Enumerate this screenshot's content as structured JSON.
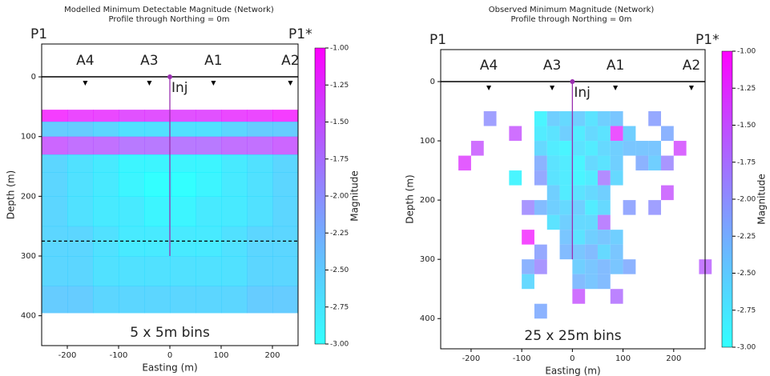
{
  "chart_data": [
    {
      "type": "heatmap",
      "title": "Modelled Minimum Detectable Magnitude (Network)",
      "subtitle": "Profile through Northing = 0m",
      "xlabel": "Easting (m)",
      "ylabel": "Depth (m)",
      "colorbar_label": "Magnitude",
      "profile_start": "P1",
      "profile_end": "P1*",
      "bins_label": "5 x 5m bins",
      "xlim": [
        -250,
        250
      ],
      "ylim": [
        -55,
        450
      ],
      "invert_y": true,
      "xticks": [
        -200,
        -100,
        0,
        100,
        200
      ],
      "yticks": [
        0,
        100,
        200,
        300,
        400
      ],
      "zlim": [
        -3,
        -1
      ],
      "zticks": [
        {
          "value": -1,
          "label": "-1.00"
        },
        {
          "value": -1.25,
          "label": "-1.25"
        },
        {
          "value": -1.5,
          "label": "-1.50"
        },
        {
          "value": -1.75,
          "label": "-1.75"
        },
        {
          "value": -2,
          "label": "-2.00"
        },
        {
          "value": -2.25,
          "label": "-2.25"
        },
        {
          "value": -2.5,
          "label": "-2.50"
        },
        {
          "value": -2.75,
          "label": "-2.75"
        },
        {
          "value": -3,
          "label": "-3.00"
        }
      ],
      "colormap": [
        "#00ffff",
        "#ff00ff"
      ],
      "stations": [
        {
          "label": "A4",
          "x": -165
        },
        {
          "label": "A3",
          "x": -40
        },
        {
          "label": "A1",
          "x": 85
        },
        {
          "label": "A2",
          "x": 235
        }
      ],
      "injection": {
        "label": "Inj",
        "x": 0,
        "depth": 300
      },
      "hline": 275,
      "xbins": [
        -250,
        -200,
        -150,
        -100,
        -50,
        0,
        50,
        100,
        150,
        200,
        250
      ],
      "ybins": [
        55,
        75,
        100,
        130,
        160,
        200,
        250,
        300,
        350,
        395
      ],
      "values": [
        [
          -1.1,
          -1.2,
          -1.2,
          -1.3,
          -1.3,
          -1.3,
          -1.3,
          -1.2,
          -1.2,
          -1.1
        ],
        [
          -2.5,
          -2.5,
          -2.6,
          -2.7,
          -2.7,
          -2.7,
          -2.7,
          -2.6,
          -2.5,
          -2.5
        ],
        [
          -1.5,
          -1.6,
          -1.6,
          -1.7,
          -1.7,
          -1.7,
          -1.7,
          -1.6,
          -1.6,
          -1.5
        ],
        [
          -2.6,
          -2.7,
          -2.8,
          -2.9,
          -2.9,
          -2.9,
          -2.9,
          -2.8,
          -2.7,
          -2.6
        ],
        [
          -2.6,
          -2.7,
          -2.8,
          -2.9,
          -3.0,
          -3.0,
          -2.9,
          -2.8,
          -2.7,
          -2.6
        ],
        [
          -2.6,
          -2.7,
          -2.8,
          -2.8,
          -2.9,
          -2.9,
          -2.8,
          -2.8,
          -2.7,
          -2.6
        ],
        [
          -2.6,
          -2.6,
          -2.7,
          -2.8,
          -2.8,
          -2.8,
          -2.8,
          -2.7,
          -2.6,
          -2.6
        ],
        [
          -2.6,
          -2.6,
          -2.7,
          -2.7,
          -2.7,
          -2.7,
          -2.7,
          -2.7,
          -2.6,
          -2.6
        ],
        [
          -2.5,
          -2.5,
          -2.6,
          -2.6,
          -2.6,
          -2.6,
          -2.6,
          -2.6,
          -2.5,
          -2.5
        ]
      ]
    },
    {
      "type": "cells",
      "title": "Observed Minimum Magnitude (Network)",
      "subtitle": "Profile through Northing = 0m",
      "xlabel": "Easting (m)",
      "ylabel": "Depth (m)",
      "colorbar_label": "Magnitude",
      "profile_start": "P1",
      "profile_end": "P1*",
      "bins_label": "25 x 25m bins",
      "xlim": [
        -260,
        262
      ],
      "ylim": [
        -54,
        451
      ],
      "invert_y": true,
      "xticks": [
        -200,
        -100,
        0,
        100,
        200
      ],
      "yticks": [
        0,
        100,
        200,
        300,
        400
      ],
      "zlim": [
        -3,
        -1
      ],
      "zticks": [
        {
          "value": -1,
          "label": "-1.00"
        },
        {
          "value": -1.25,
          "label": "-1.25"
        },
        {
          "value": -1.5,
          "label": "-1.50"
        },
        {
          "value": -1.75,
          "label": "-1.75"
        },
        {
          "value": -2,
          "label": "-2.00"
        },
        {
          "value": -2.25,
          "label": "-2.25"
        },
        {
          "value": -2.5,
          "label": "-2.50"
        },
        {
          "value": -2.75,
          "label": "-2.75"
        },
        {
          "value": -3,
          "label": "-3.00"
        }
      ],
      "colormap": [
        "#00ffff",
        "#ff00ff"
      ],
      "stations": [
        {
          "label": "A4",
          "x": -165
        },
        {
          "label": "A3",
          "x": -40
        },
        {
          "label": "A1",
          "x": 85
        },
        {
          "label": "A2",
          "x": 235
        }
      ],
      "injection": {
        "label": "Inj",
        "x": 0,
        "depth": 300
      },
      "x": [
        -175,
        -75,
        -50,
        -25,
        0,
        25,
        50,
        75,
        150,
        -125,
        -75,
        -50,
        -25,
        0,
        25,
        50,
        75,
        100,
        175,
        -200,
        -75,
        -50,
        -25,
        0,
        25,
        50,
        75,
        100,
        125,
        150,
        200,
        -225,
        -75,
        -50,
        -25,
        0,
        25,
        50,
        75,
        125,
        150,
        175,
        -125,
        -75,
        -50,
        -25,
        0,
        25,
        50,
        75,
        -50,
        -25,
        0,
        25,
        50,
        175,
        -100,
        -75,
        -50,
        -25,
        0,
        25,
        50,
        100,
        150,
        -50,
        -25,
        0,
        25,
        50,
        -100,
        -25,
        0,
        25,
        50,
        75,
        -75,
        -25,
        0,
        25,
        50,
        75,
        -100,
        -75,
        0,
        25,
        50,
        75,
        100,
        250,
        -100,
        0,
        25,
        50,
        0,
        75,
        -75
      ],
      "y": [
        50,
        50,
        50,
        50,
        50,
        50,
        50,
        50,
        50,
        75,
        75,
        75,
        75,
        75,
        75,
        75,
        75,
        75,
        75,
        100,
        100,
        100,
        100,
        100,
        100,
        100,
        100,
        100,
        100,
        100,
        100,
        125,
        125,
        125,
        125,
        125,
        125,
        125,
        125,
        125,
        125,
        125,
        150,
        150,
        150,
        150,
        150,
        150,
        150,
        150,
        175,
        175,
        175,
        175,
        175,
        175,
        200,
        200,
        200,
        200,
        200,
        200,
        200,
        200,
        200,
        225,
        225,
        225,
        225,
        225,
        250,
        250,
        250,
        250,
        250,
        250,
        275,
        275,
        275,
        275,
        275,
        275,
        300,
        300,
        300,
        300,
        300,
        300,
        300,
        300,
        325,
        325,
        325,
        325,
        350,
        350,
        375
      ],
      "values": [
        -2.0,
        -2.9,
        -2.5,
        -2.6,
        -2.5,
        -2.7,
        -2.5,
        -2.4,
        -2.1,
        -1.5,
        -2.8,
        -2.7,
        -2.5,
        -2.8,
        -2.6,
        -2.7,
        -1.2,
        -2.5,
        -2.2,
        -1.5,
        -2.6,
        -2.8,
        -2.9,
        -2.7,
        -2.8,
        -2.6,
        -2.5,
        -2.4,
        -2.4,
        -2.4,
        -1.4,
        -1.3,
        -2.2,
        -2.7,
        -2.8,
        -2.9,
        -2.6,
        -2.7,
        -2.5,
        -2.2,
        -2.5,
        -1.9,
        -2.9,
        -2.1,
        -2.7,
        -2.8,
        -2.9,
        -2.8,
        -1.8,
        -2.6,
        -2.5,
        -2.8,
        -2.7,
        -2.6,
        -2.5,
        -1.5,
        -1.9,
        -2.3,
        -2.5,
        -2.6,
        -2.5,
        -2.8,
        -2.6,
        -2.1,
        -2.0,
        -2.7,
        -2.5,
        -2.6,
        -2.6,
        -1.7,
        -1.1,
        -2.4,
        -2.7,
        -2.5,
        -2.4,
        -2.5,
        -2.1,
        -2.3,
        -2.4,
        -2.3,
        -2.6,
        -2.4,
        -2.2,
        -1.9,
        -2.5,
        -2.4,
        -2.3,
        -2.4,
        -2.2,
        -1.6,
        -2.6,
        -2.3,
        -2.4,
        -2.3,
        -1.5,
        -1.7,
        -2.2
      ]
    }
  ]
}
